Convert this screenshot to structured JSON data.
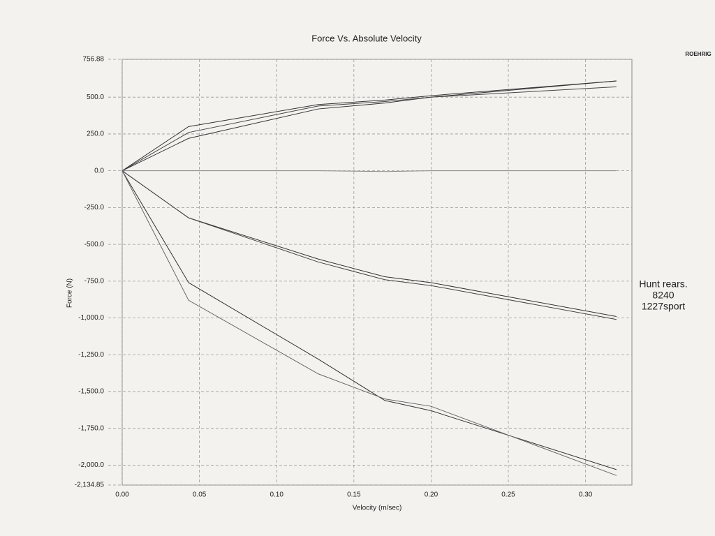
{
  "chart_data": {
    "type": "line",
    "title": "Force Vs. Absolute Velocity",
    "x_label": "Velocity (m/sec)",
    "y_label": "Force (N)",
    "annotations": [
      "Hunt rears.",
      "8240",
      "1227sport"
    ],
    "logo": "ROEHRIG",
    "x": [
      0,
      0.043,
      0.127,
      0.17,
      0.2,
      0.32
    ],
    "xlim": [
      0,
      0.33
    ],
    "xticks": [
      {
        "value": 0,
        "label": "0.00"
      },
      {
        "value": 0.05,
        "label": "0.05"
      },
      {
        "value": 0.1,
        "label": "0.10"
      },
      {
        "value": 0.15,
        "label": "0.15"
      },
      {
        "value": 0.2,
        "label": "0.20"
      },
      {
        "value": 0.25,
        "label": "0.25"
      },
      {
        "value": 0.3,
        "label": "0.30"
      }
    ],
    "ylim": [
      -2134.85,
      756.88
    ],
    "yticks": [
      756.88,
      {
        "value": 500,
        "label": "500.0"
      },
      {
        "value": 250,
        "label": "250.0"
      },
      {
        "value": 0,
        "label": "0.0"
      },
      {
        "value": -250,
        "label": "-250.0"
      },
      {
        "value": -500,
        "label": "-500.0"
      },
      {
        "value": -750,
        "label": "-750.0"
      },
      {
        "value": -1000,
        "label": "-1,000.0"
      },
      {
        "value": -1250,
        "label": "-1,250.0"
      },
      {
        "value": -1500,
        "label": "-1,500.0"
      },
      {
        "value": -1750,
        "label": "-1,750.0"
      },
      {
        "value": -2000,
        "label": "-2,000.0"
      },
      {
        "value": -2134.85,
        "label": "-2,134.85"
      }
    ],
    "grid": true,
    "series": [
      {
        "color": "#333333",
        "values": [
          0,
          300,
          450,
          480,
          510,
          610
        ]
      },
      {
        "color": "#444444",
        "values": [
          0,
          260,
          440,
          470,
          500,
          570
        ]
      },
      {
        "color": "#333333",
        "values": [
          0,
          220,
          420,
          460,
          500,
          610
        ]
      },
      {
        "color": "#888888",
        "values": [
          0,
          0,
          0,
          -5,
          0,
          0
        ]
      },
      {
        "color": "#333333",
        "values": [
          0,
          -320,
          -600,
          -720,
          -760,
          -990
        ]
      },
      {
        "color": "#444444",
        "values": [
          0,
          -320,
          -620,
          -740,
          -780,
          -1010
        ]
      },
      {
        "color": "#333333",
        "values": [
          0,
          -760,
          -1280,
          -1560,
          -1630,
          -2030
        ]
      },
      {
        "color": "#666666",
        "values": [
          0,
          -880,
          -1380,
          -1550,
          -1600,
          -2070
        ]
      }
    ]
  }
}
